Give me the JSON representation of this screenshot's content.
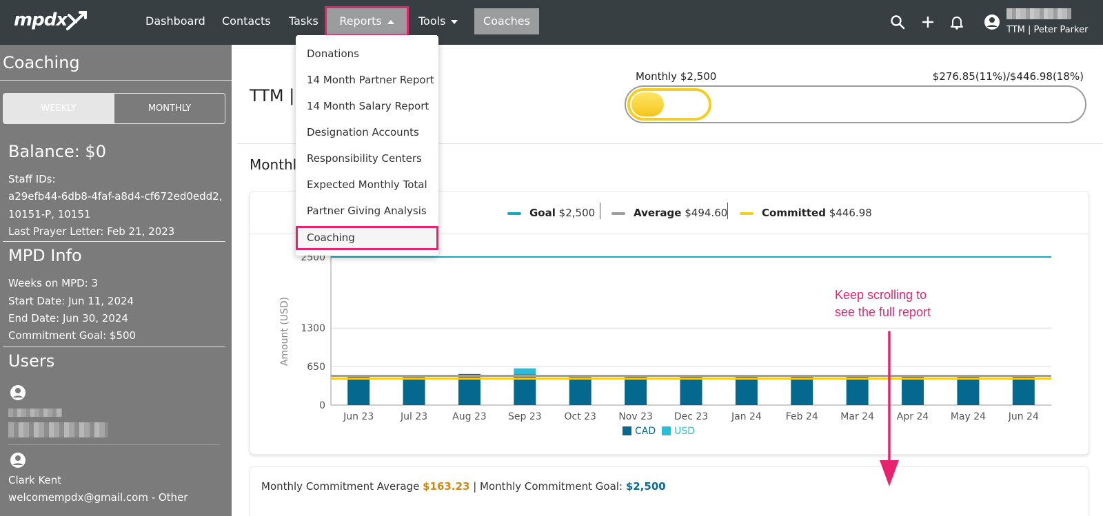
{
  "nav": {
    "logo": "mpdx",
    "items": [
      "Dashboard",
      "Contacts",
      "Tasks",
      "Reports",
      "Tools",
      "Coaches"
    ],
    "user_org": "TTM | Peter Parker"
  },
  "reports_menu": {
    "items": [
      "Donations",
      "14 Month Partner Report",
      "14 Month Salary Report",
      "Designation Accounts",
      "Responsibility Centers",
      "Expected Monthly Total",
      "Partner Giving Analysis",
      "Coaching"
    ],
    "highlighted": "Coaching"
  },
  "sidebar": {
    "title": "Coaching",
    "toggle": {
      "weekly": "WEEKLY",
      "monthly": "MONTHLY"
    },
    "balance": "Balance: $0",
    "staff_ids_label": "Staff IDs:",
    "staff_ids_line1": "a29efb44-6db8-4faf-a8d4-cf672ed0edd2,",
    "staff_ids_line2": "10151-P, 10151",
    "last_prayer_letter": "Last Prayer Letter: Feb 21, 2023",
    "mpd_info_title": "MPD Info",
    "weeks_on_mpd": "Weeks on MPD: 3",
    "start_date": "Start Date: Jun 11, 2024",
    "end_date": "End Date: Jun 30, 2024",
    "commitment_goal": "Commitment Goal: $500",
    "users_title": "Users",
    "user2_name": "Clark Kent",
    "user2_email": "welcomempdx@gmail.com - Other"
  },
  "main": {
    "page_title": "TTM | P",
    "goal_label": "Monthly $2,500",
    "goal_right": "$276.85(11%)/$446.98(18%)",
    "progress_fraction": 0.11,
    "progress_committed_fraction": 0.18,
    "section_title": "Monthly",
    "legend": {
      "goal_label": "Goal",
      "goal_value": "$2,500",
      "average_label": "Average",
      "average_value": "$494.60",
      "committed_label": "Committed",
      "committed_value": "$446.98"
    },
    "commitment_avg_label": "Monthly Commitment Average",
    "commitment_avg_value": "$163.23",
    "commitment_goal_label": "| Monthly Commitment Goal:",
    "commitment_goal_value": "$2,500"
  },
  "annotation": {
    "line1": "Keep scrolling to",
    "line2": "see the full report"
  },
  "colors": {
    "goal": "#17a9bd",
    "average": "#9e9e9e",
    "committed": "#f5ce1f",
    "cad": "#05698f",
    "usd": "#2bbdd6",
    "accent_pink": "#e8226f"
  },
  "chart_data": {
    "type": "bar",
    "ylabel": "Amount (USD)",
    "yticks": [
      0,
      650,
      1300,
      2500
    ],
    "ylim": [
      0,
      2500
    ],
    "categories": [
      "Jun 23",
      "Jul 23",
      "Aug 23",
      "Sep 23",
      "Oct 23",
      "Nov 23",
      "Dec 23",
      "Jan 24",
      "Feb 24",
      "Mar 24",
      "Apr 24",
      "May 24",
      "Jun 24"
    ],
    "series": [
      {
        "name": "CAD",
        "values": [
          497,
          475,
          525,
          520,
          475,
          497,
          497,
          497,
          497,
          497,
          497,
          497,
          497
        ]
      },
      {
        "name": "USD",
        "values": [
          0,
          0,
          0,
          100,
          0,
          0,
          0,
          0,
          0,
          0,
          0,
          0,
          0
        ]
      }
    ],
    "reference_lines": {
      "goal": 2500,
      "average": 494.6,
      "committed": 446.98
    },
    "stacked": true,
    "legend_position": "bottom"
  }
}
